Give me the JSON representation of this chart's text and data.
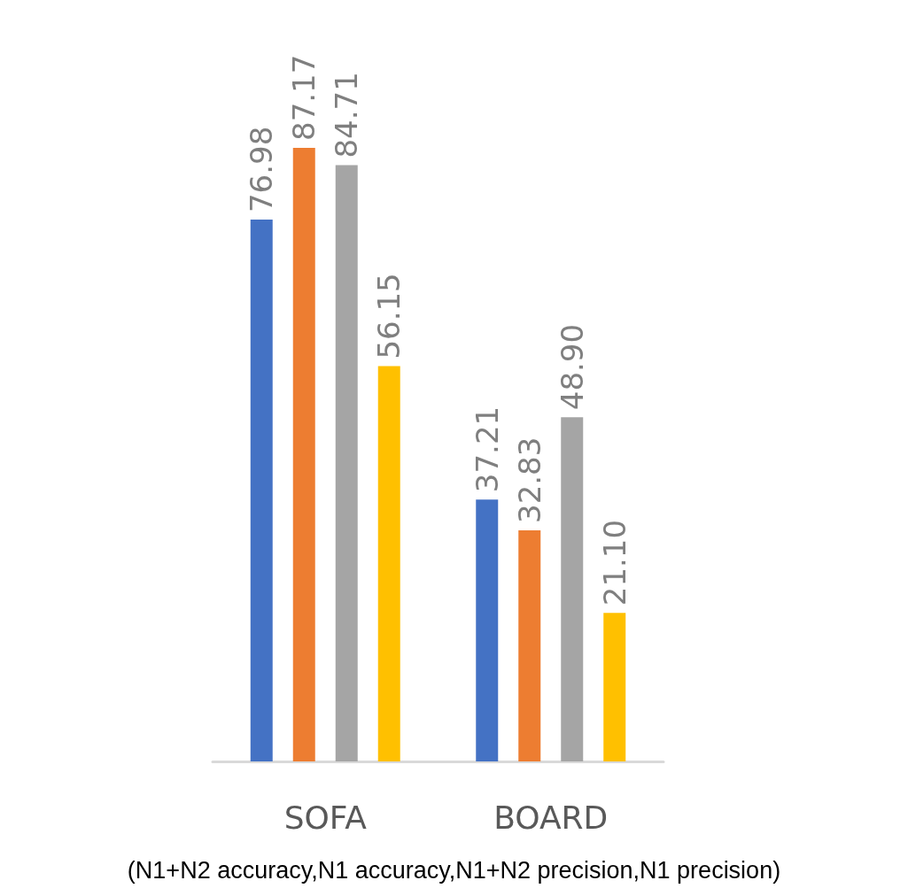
{
  "chart_data": {
    "type": "bar",
    "categories": [
      "SOFA",
      "BOARD"
    ],
    "series": [
      {
        "color": "#4472c4",
        "values": [
          76.98,
          37.21
        ],
        "value_labels": [
          "76.98",
          "37.21"
        ]
      },
      {
        "color": "#ed7d31",
        "values": [
          87.17,
          32.83
        ],
        "value_labels": [
          "87.17",
          "32.83"
        ]
      },
      {
        "color": "#a5a5a5",
        "values": [
          84.71,
          48.9
        ],
        "value_labels": [
          "84.71",
          "48.90"
        ]
      },
      {
        "color": "#ffc000",
        "values": [
          56.15,
          21.1
        ],
        "value_labels": [
          "56.15",
          "21.10"
        ]
      }
    ],
    "grid": false,
    "annotations": [
      "(N1+N2 accuracy,N1 accuracy,N1+N2 precision,N1 precision)"
    ]
  }
}
